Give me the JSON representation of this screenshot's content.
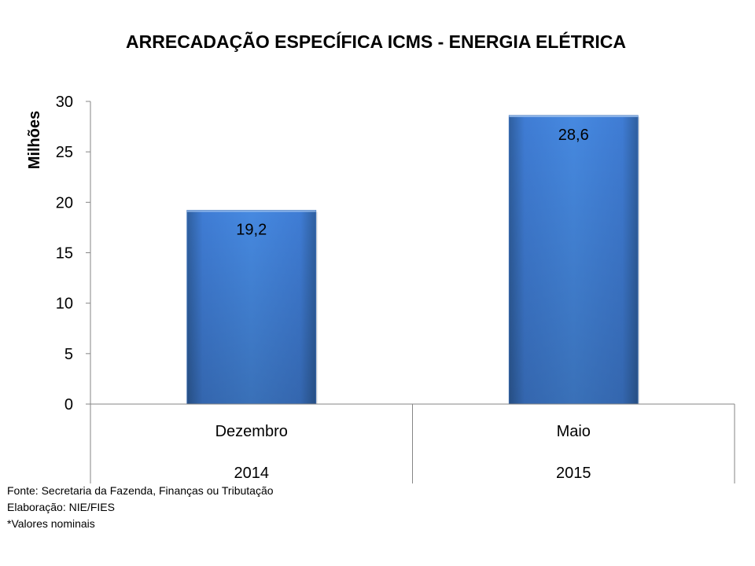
{
  "chart_data": {
    "type": "bar",
    "title": "ARRECADAÇÃO ESPECÍFICA ICMS - ENERGIA ELÉTRICA",
    "ylabel": "Milhões",
    "xlabel": "",
    "ylim": [
      0,
      30
    ],
    "yticks": [
      0,
      5,
      10,
      15,
      20,
      25,
      30
    ],
    "ytick_labels": [
      "0",
      "5",
      "10",
      "15",
      "20",
      "25",
      "30"
    ],
    "categories": [
      "Dezembro",
      "Maio"
    ],
    "years": [
      "2014",
      "2015"
    ],
    "values": [
      19.2,
      28.6
    ],
    "data_labels": [
      "19,2",
      "28,6"
    ],
    "bar_color": "#3f7cd4",
    "legend": "none",
    "grid": false
  },
  "notes": {
    "source": "Fonte: Secretaria da Fazenda, Finanças ou Tributação",
    "elaboration": "Elaboração: NIE/FIES",
    "disclaimer": "*Valores nominais"
  }
}
